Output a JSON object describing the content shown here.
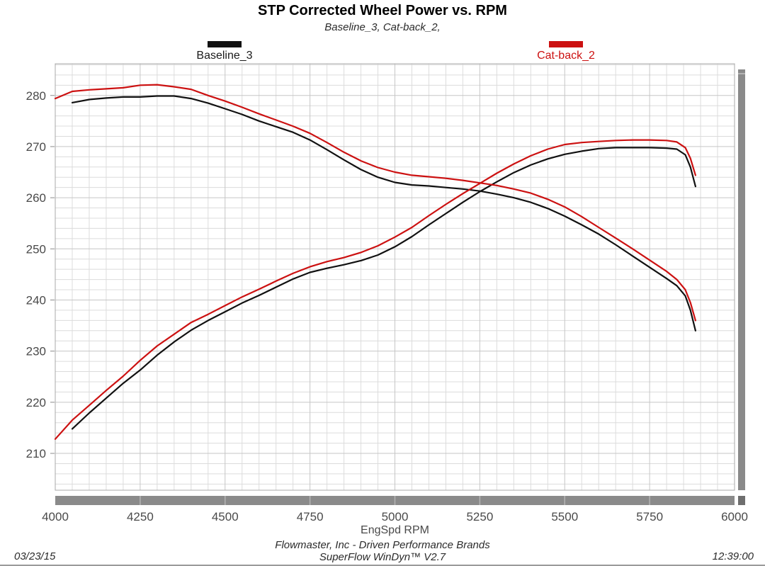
{
  "header": {
    "title": "STP Corrected Wheel Power vs. RPM",
    "subtitle": "Baseline_3, Cat-back_2,"
  },
  "legend": [
    {
      "label": "Baseline_3",
      "color": "#111111"
    },
    {
      "label": "Cat-back_2",
      "color": "#cc1111"
    }
  ],
  "footer": {
    "date": "03/23/15",
    "company_line": "Flowmaster, Inc - Driven Performance Brands",
    "software_line": "SuperFlow WinDyn™ V2.7",
    "time": "12:39:00"
  },
  "colors": {
    "baseline_line": "#111111",
    "catback_line": "#cc1111",
    "grid_minor": "#dcdcdc",
    "grid_major": "#c6c6c6",
    "plot_border": "#a8a8a8",
    "tick": "#8a8a8a",
    "tick_label": "#4a4a4a",
    "scrollbar": "#8a8a8a",
    "scrollbar_notch": "#b4b4b4",
    "scrollbar_corner": "#6e6e6e"
  },
  "chart_data": {
    "type": "line",
    "title": "STP Corrected Wheel Power vs. RPM",
    "subtitle": "Baseline_3, Cat-back_2,",
    "xlabel": "EngSpd RPM",
    "ylabel": "",
    "xlim": [
      4000,
      6000
    ],
    "ylim": [
      202.8,
      286.2
    ],
    "grid": true,
    "legend_position": "top",
    "x_major_ticks": [
      4000,
      4250,
      4500,
      4750,
      5000,
      5250,
      5500,
      5750,
      6000
    ],
    "x_minor_step": 50,
    "y_major_ticks": [
      210,
      220,
      230,
      240,
      250,
      260,
      270,
      280
    ],
    "y_minor_step": 2,
    "x": [
      4000,
      4050,
      4100,
      4150,
      4200,
      4250,
      4300,
      4350,
      4400,
      4450,
      4500,
      4550,
      4600,
      4650,
      4700,
      4750,
      4800,
      4850,
      4900,
      4950,
      5000,
      5050,
      5100,
      5150,
      5200,
      5250,
      5300,
      5350,
      5400,
      5450,
      5500,
      5550,
      5600,
      5650,
      5700,
      5750,
      5800,
      5830,
      5855,
      5870,
      5885
    ],
    "series": [
      {
        "name": "Baseline_3 power",
        "run": "Baseline_3",
        "color": "#111111",
        "values": [
          null,
          214.8,
          217.9,
          220.8,
          223.7,
          226.3,
          229.2,
          231.8,
          234.1,
          236.0,
          237.7,
          239.4,
          240.9,
          242.5,
          244.1,
          245.4,
          246.2,
          246.9,
          247.7,
          248.8,
          250.4,
          252.4,
          254.7,
          256.9,
          259.1,
          261.2,
          263.1,
          264.9,
          266.4,
          267.6,
          268.5,
          269.1,
          269.6,
          269.8,
          269.8,
          269.8,
          269.7,
          269.5,
          268.4,
          266.0,
          262.2
        ]
      },
      {
        "name": "Baseline_3 torque",
        "run": "Baseline_3",
        "color": "#111111",
        "values": [
          null,
          278.6,
          279.2,
          279.5,
          279.7,
          279.7,
          279.9,
          279.9,
          279.4,
          278.5,
          277.4,
          276.3,
          275.0,
          273.9,
          272.8,
          271.3,
          269.4,
          267.4,
          265.5,
          264.0,
          263.0,
          262.5,
          262.3,
          262.0,
          261.7,
          261.3,
          260.7,
          260.0,
          259.1,
          257.9,
          256.4,
          254.7,
          252.9,
          250.8,
          248.6,
          246.4,
          244.2,
          242.8,
          240.8,
          238.0,
          234.0
        ]
      },
      {
        "name": "Cat-back_2 power",
        "run": "Cat-back_2",
        "color": "#cc1111",
        "values": [
          212.8,
          216.5,
          219.4,
          222.3,
          225.1,
          228.2,
          231.0,
          233.3,
          235.6,
          237.2,
          238.9,
          240.6,
          242.1,
          243.7,
          245.2,
          246.5,
          247.5,
          248.3,
          249.3,
          250.6,
          252.3,
          254.2,
          256.5,
          258.7,
          260.8,
          262.8,
          264.8,
          266.6,
          268.2,
          269.5,
          270.4,
          270.8,
          271.0,
          271.2,
          271.3,
          271.3,
          271.2,
          270.9,
          269.8,
          267.7,
          264.4
        ]
      },
      {
        "name": "Cat-back_2 torque",
        "run": "Cat-back_2",
        "color": "#cc1111",
        "values": [
          279.4,
          280.8,
          281.1,
          281.3,
          281.5,
          282.0,
          282.1,
          281.7,
          281.2,
          280.0,
          278.9,
          277.7,
          276.4,
          275.2,
          274.0,
          272.6,
          270.8,
          268.9,
          267.2,
          265.9,
          265.0,
          264.4,
          264.1,
          263.8,
          263.4,
          262.9,
          262.4,
          261.7,
          260.9,
          259.7,
          258.2,
          256.3,
          254.2,
          252.1,
          250.0,
          247.8,
          245.6,
          244.0,
          242.0,
          239.5,
          236.0
        ]
      }
    ]
  }
}
